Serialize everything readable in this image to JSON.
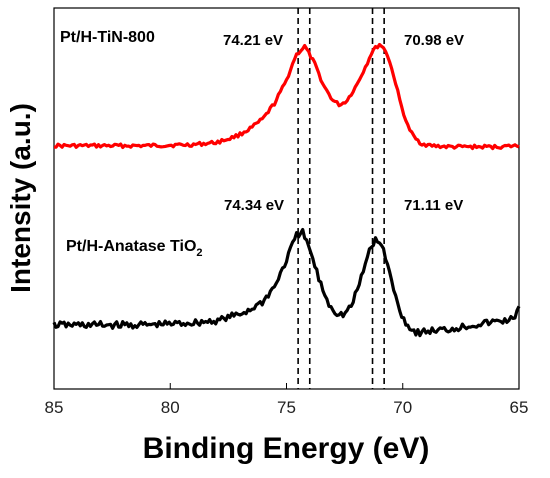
{
  "chart_data": {
    "type": "line",
    "xlabel": "Binding Energy (eV)",
    "ylabel": "Intensity (a.u.)",
    "xlim": [
      85,
      65
    ],
    "x_reversed": true,
    "xticks": [
      "85",
      "80",
      "75",
      "70",
      "65"
    ],
    "y_ticks_shown": false,
    "grid": false,
    "legend": "none",
    "series": [
      {
        "name": "Pt/H-TiN-800",
        "color": "#ff0000",
        "peaks": [
          {
            "position": 74.21,
            "label": "74.21 eV"
          },
          {
            "position": 70.98,
            "label": "70.98 eV"
          }
        ],
        "x": [
          85,
          83,
          81,
          79,
          78,
          77.5,
          77,
          76.5,
          76,
          75.5,
          75,
          74.6,
          74.21,
          73.8,
          73.4,
          73.0,
          72.7,
          72.4,
          72.0,
          71.6,
          71.3,
          70.98,
          70.7,
          70.4,
          70.1,
          69.8,
          69.5,
          69.2,
          68.8,
          68,
          67,
          66,
          65
        ],
        "y": [
          0.02,
          0.02,
          0.02,
          0.03,
          0.05,
          0.08,
          0.12,
          0.18,
          0.26,
          0.4,
          0.6,
          0.82,
          0.9,
          0.75,
          0.55,
          0.42,
          0.38,
          0.42,
          0.55,
          0.72,
          0.86,
          0.92,
          0.85,
          0.65,
          0.4,
          0.2,
          0.09,
          0.04,
          0.02,
          0.01,
          0.01,
          0.01,
          0.02
        ]
      },
      {
        "name": "Pt/H-Anatase TiO2",
        "color": "#000000",
        "peaks": [
          {
            "position": 74.34,
            "label": "74.34 eV"
          },
          {
            "position": 71.11,
            "label": "71.11 eV"
          }
        ],
        "x": [
          85,
          83,
          81,
          79,
          78,
          77.5,
          77,
          76.5,
          76,
          75.5,
          75,
          74.6,
          74.34,
          74.0,
          73.6,
          73.2,
          72.8,
          72.5,
          72.2,
          71.8,
          71.4,
          71.11,
          70.8,
          70.5,
          70.2,
          69.9,
          69.6,
          69.3,
          69.0,
          68,
          67,
          66,
          65.3,
          65
        ],
        "y": [
          0.0,
          0.0,
          0.0,
          0.02,
          0.04,
          0.07,
          0.1,
          0.15,
          0.22,
          0.36,
          0.6,
          0.82,
          0.87,
          0.7,
          0.42,
          0.2,
          0.1,
          0.1,
          0.18,
          0.42,
          0.72,
          0.8,
          0.68,
          0.42,
          0.18,
          0.03,
          -0.05,
          -0.07,
          -0.06,
          -0.04,
          0.0,
          0.03,
          0.05,
          0.15
        ]
      }
    ],
    "series_labels": [
      {
        "main": "Pt/H-TiN-800",
        "sub": ""
      },
      {
        "main": "Pt/H-Anatase TiO",
        "sub": "2"
      }
    ],
    "reference_lines": [
      74.5,
      74.0,
      71.3,
      70.8
    ]
  }
}
